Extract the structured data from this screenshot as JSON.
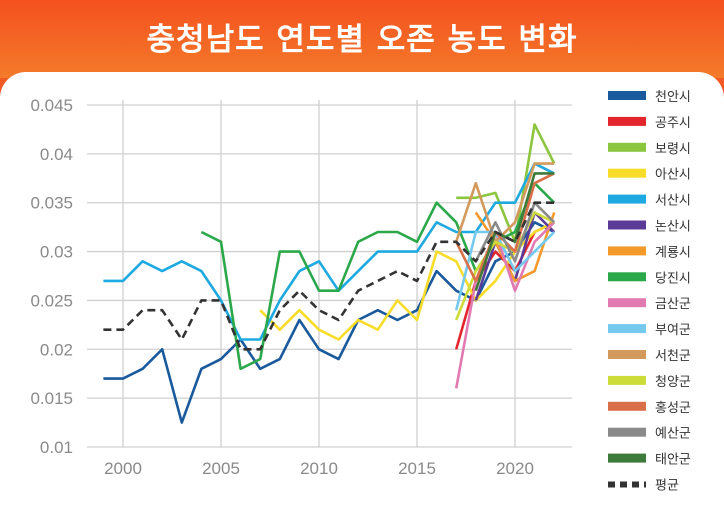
{
  "title": "충청남도 연도별 오존 농도 변화",
  "chart_data": {
    "type": "line",
    "title": "충청남도 연도별 오존 농도 변화",
    "xlabel": "",
    "ylabel": "",
    "xlim": [
      1999,
      2022
    ],
    "ylim": [
      0.01,
      0.045
    ],
    "x_ticks": [
      "2000",
      "2005",
      "2010",
      "2015",
      "2020"
    ],
    "y_ticks": [
      "0.01",
      "0.015",
      "0.02",
      "0.025",
      "0.03",
      "0.035",
      "0.04",
      "0.045"
    ],
    "grid": true,
    "legend_position": "right",
    "x": [
      1999,
      2000,
      2001,
      2002,
      2003,
      2004,
      2005,
      2006,
      2007,
      2008,
      2009,
      2010,
      2011,
      2012,
      2013,
      2014,
      2015,
      2016,
      2017,
      2018,
      2019,
      2020,
      2021,
      2022
    ],
    "series": [
      {
        "name": "천안시",
        "color": "#1a5a9c",
        "values": [
          0.017,
          0.017,
          0.018,
          0.02,
          0.0125,
          0.018,
          0.019,
          0.021,
          0.018,
          0.019,
          0.023,
          0.02,
          0.019,
          0.023,
          0.024,
          0.023,
          0.024,
          0.028,
          0.026,
          0.025,
          0.029,
          0.03,
          0.033,
          0.032
        ]
      },
      {
        "name": "공주시",
        "color": "#e3262e",
        "values": [
          null,
          null,
          null,
          null,
          null,
          null,
          null,
          null,
          null,
          null,
          null,
          null,
          null,
          null,
          null,
          null,
          null,
          null,
          0.02,
          0.027,
          0.03,
          0.028,
          0.032,
          0.033
        ]
      },
      {
        "name": "보령시",
        "color": "#8cc63f",
        "values": [
          null,
          null,
          null,
          null,
          null,
          null,
          null,
          null,
          null,
          null,
          null,
          null,
          null,
          null,
          null,
          null,
          null,
          null,
          0.0355,
          0.0355,
          0.036,
          0.031,
          0.043,
          0.039
        ]
      },
      {
        "name": "아산시",
        "color": "#f7dc2a",
        "values": [
          null,
          null,
          null,
          null,
          null,
          null,
          null,
          null,
          0.024,
          0.022,
          0.024,
          0.022,
          0.021,
          0.023,
          0.022,
          0.025,
          0.023,
          0.03,
          0.029,
          0.025,
          0.027,
          0.03,
          0.032,
          0.033
        ]
      },
      {
        "name": "서산시",
        "color": "#1ea9e1",
        "values": [
          0.027,
          0.027,
          0.029,
          0.028,
          0.029,
          0.028,
          0.025,
          0.021,
          0.021,
          0.025,
          0.028,
          0.029,
          0.026,
          0.028,
          0.03,
          0.03,
          0.03,
          0.033,
          0.032,
          0.032,
          0.035,
          0.035,
          0.039,
          0.038
        ]
      },
      {
        "name": "논산시",
        "color": "#5b3a98",
        "values": [
          null,
          null,
          null,
          null,
          null,
          null,
          null,
          null,
          null,
          null,
          null,
          null,
          null,
          null,
          null,
          null,
          null,
          null,
          null,
          0.025,
          0.031,
          0.027,
          0.034,
          0.032
        ]
      },
      {
        "name": "계룡시",
        "color": "#f39a2b",
        "values": [
          null,
          null,
          null,
          null,
          null,
          null,
          null,
          null,
          null,
          null,
          null,
          null,
          null,
          null,
          null,
          null,
          null,
          null,
          null,
          0.034,
          0.031,
          0.027,
          0.028,
          0.034
        ]
      },
      {
        "name": "당진시",
        "color": "#2ba84a",
        "values": [
          null,
          null,
          null,
          null,
          null,
          0.032,
          0.031,
          0.018,
          0.019,
          0.03,
          0.03,
          0.026,
          0.026,
          0.031,
          0.032,
          0.032,
          0.031,
          0.035,
          0.033,
          0.028,
          0.031,
          0.032,
          0.037,
          0.035
        ]
      },
      {
        "name": "금산군",
        "color": "#e27ab2",
        "values": [
          null,
          null,
          null,
          null,
          null,
          null,
          null,
          null,
          null,
          null,
          null,
          null,
          null,
          null,
          null,
          null,
          null,
          null,
          0.016,
          0.027,
          0.032,
          0.026,
          0.031,
          0.033
        ]
      },
      {
        "name": "부여군",
        "color": "#74c9ef",
        "values": [
          null,
          null,
          null,
          null,
          null,
          null,
          null,
          null,
          null,
          null,
          null,
          null,
          null,
          null,
          null,
          null,
          null,
          null,
          0.024,
          0.032,
          0.032,
          0.028,
          0.03,
          0.032
        ]
      },
      {
        "name": "서천군",
        "color": "#d29a5c",
        "values": [
          null,
          null,
          null,
          null,
          null,
          null,
          null,
          null,
          null,
          null,
          null,
          null,
          null,
          null,
          null,
          null,
          null,
          null,
          0.031,
          0.037,
          0.031,
          0.033,
          0.039,
          0.039
        ]
      },
      {
        "name": "청양군",
        "color": "#cddc39",
        "values": [
          null,
          null,
          null,
          null,
          null,
          null,
          null,
          null,
          null,
          null,
          null,
          null,
          null,
          null,
          null,
          null,
          null,
          null,
          0.023,
          0.028,
          0.031,
          0.03,
          0.034,
          0.033
        ]
      },
      {
        "name": "홍성군",
        "color": "#d9704a",
        "values": [
          null,
          null,
          null,
          null,
          null,
          null,
          null,
          null,
          null,
          null,
          null,
          null,
          null,
          null,
          null,
          null,
          null,
          null,
          0.031,
          0.027,
          0.032,
          0.03,
          0.037,
          0.038
        ]
      },
      {
        "name": "예산군",
        "color": "#8a8a8a",
        "values": [
          null,
          null,
          null,
          null,
          null,
          null,
          null,
          null,
          null,
          null,
          null,
          null,
          null,
          null,
          null,
          null,
          null,
          null,
          null,
          0.029,
          0.033,
          0.029,
          0.035,
          0.033
        ]
      },
      {
        "name": "태안군",
        "color": "#3e7b3a",
        "values": [
          null,
          null,
          null,
          null,
          null,
          null,
          null,
          null,
          null,
          null,
          null,
          null,
          null,
          null,
          null,
          null,
          null,
          null,
          null,
          0.026,
          0.032,
          0.031,
          0.038,
          0.038
        ]
      },
      {
        "name": "평균",
        "color": "#333333",
        "dashed": true,
        "values": [
          0.022,
          0.022,
          0.024,
          0.024,
          0.021,
          0.025,
          0.025,
          0.02,
          0.02,
          0.024,
          0.026,
          0.024,
          0.023,
          0.026,
          0.027,
          0.028,
          0.027,
          0.031,
          0.031,
          0.029,
          0.032,
          0.031,
          0.035,
          0.035
        ]
      }
    ]
  }
}
